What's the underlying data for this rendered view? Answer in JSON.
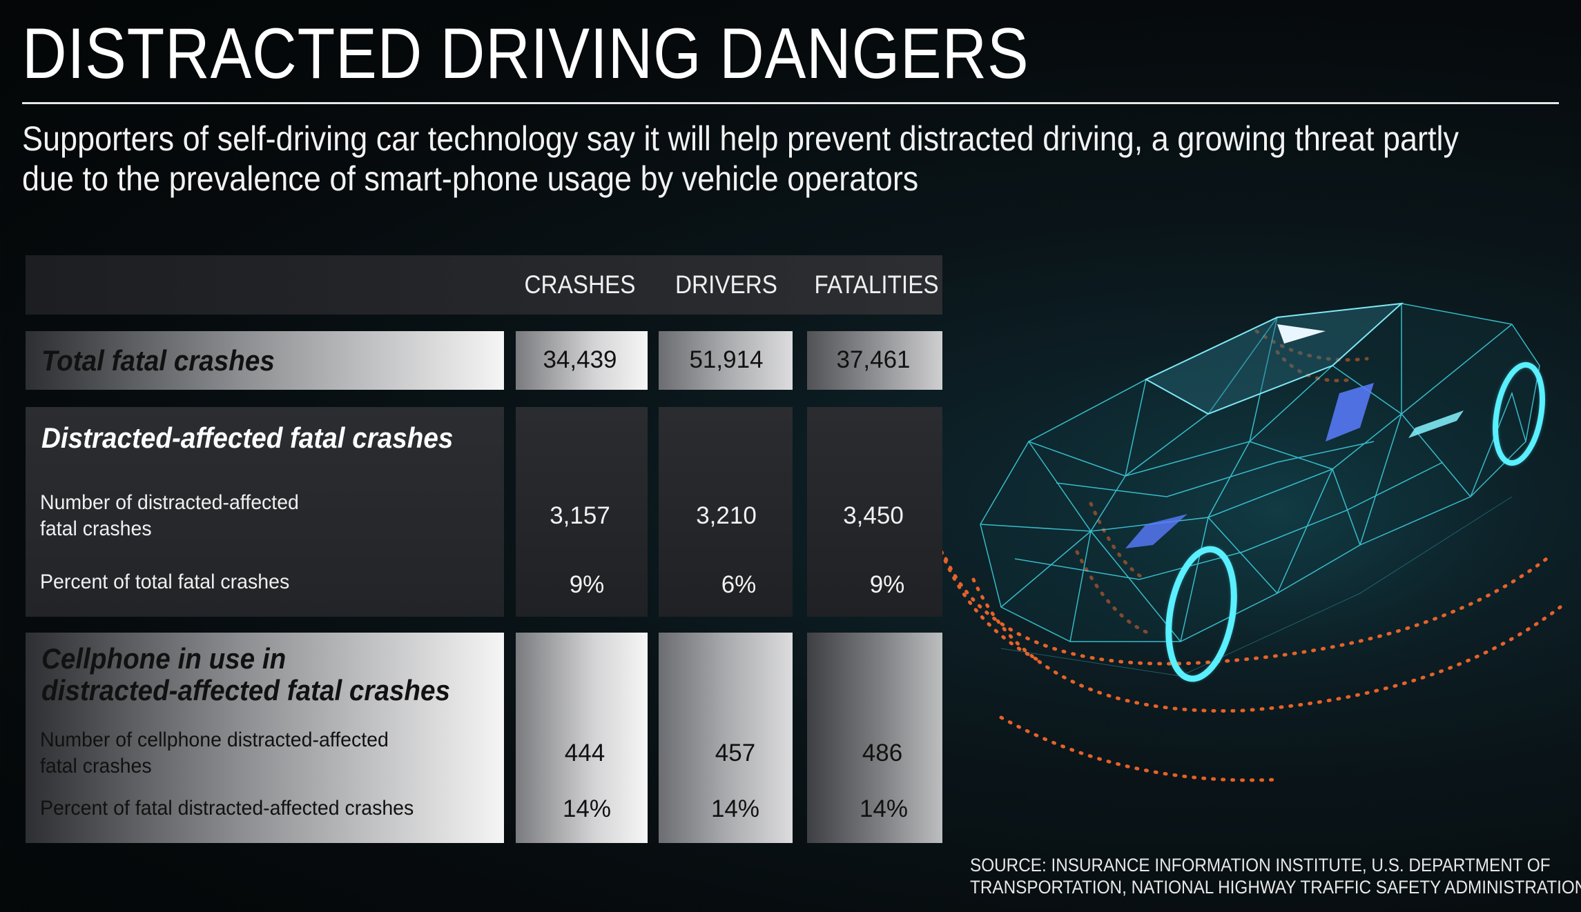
{
  "title": "DISTRACTED DRIVING DANGERS",
  "subtitle": "Supporters of self-driving car technology say it will help prevent distracted driving, a growing threat partly due to the prevalence of smart-phone usage by vehicle operators",
  "columns": [
    "CRASHES",
    "DRIVERS",
    "FATALITIES"
  ],
  "total": {
    "heading": "Total fatal crashes",
    "values": [
      "34,439",
      "51,914",
      "37,461"
    ]
  },
  "distracted": {
    "heading": "Distracted-affected fatal crashes",
    "rows": [
      {
        "label_line1": "Number of distracted-affected",
        "label_line2": "fatal crashes",
        "values": [
          "3,157",
          "3,210",
          "3,450"
        ]
      },
      {
        "label_line1": "Percent of total fatal crashes",
        "values": [
          "9%",
          "6%",
          "9%"
        ]
      }
    ]
  },
  "cellphone": {
    "heading_line1": "Cellphone in use in",
    "heading_line2": "distracted-affected fatal crashes",
    "rows": [
      {
        "label_line1": "Number of cellphone distracted-affected",
        "label_line2": "fatal crashes",
        "values": [
          "444",
          "457",
          "486"
        ]
      },
      {
        "label_line1": "Percent of fatal distracted-affected crashes",
        "values": [
          "14%",
          "14%",
          "14%"
        ]
      }
    ]
  },
  "source_line1": "SOURCE: INSURANCE INFORMATION INSTITUTE, U.S. DEPARTMENT OF",
  "source_line2": "TRANSPORTATION, NATIONAL HIGHWAY TRAFFIC SAFETY ADMINISTRATION",
  "colors": {
    "wireframe": "#3fd6e6",
    "radar_dots": "#ff6a2a",
    "sensor": "#5a7cff"
  }
}
